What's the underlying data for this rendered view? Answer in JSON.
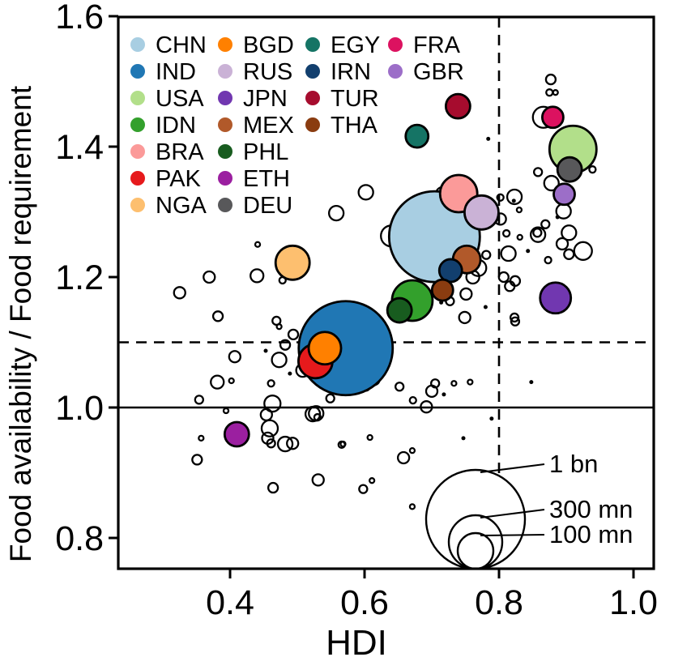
{
  "chart_data": {
    "type": "scatter",
    "title": "",
    "xlabel": "HDI",
    "ylabel": "Food availability / Food requirement",
    "xlim": [
      0.23373,
      1.03012
    ],
    "ylim": [
      0.7528,
      1.59876
    ],
    "xticks": [
      {
        "value": 0.4,
        "label": "0.4"
      },
      {
        "value": 0.6,
        "label": "0.6"
      },
      {
        "value": 0.8,
        "label": "0.8"
      },
      {
        "value": 1.0,
        "label": "1.0"
      }
    ],
    "yticks": [
      {
        "value": 0.8,
        "label": "0.8"
      },
      {
        "value": 1.0,
        "label": "1.0"
      },
      {
        "value": 1.2,
        "label": "1.2"
      },
      {
        "value": 1.4,
        "label": "1.4"
      },
      {
        "value": 1.6,
        "label": "1.6"
      }
    ],
    "reference_lines": {
      "solid_horizontal_y": 1.0,
      "dashed_horizontal_y": 1.1,
      "dashed_vertical_x": 0.8
    },
    "grid": false,
    "legend_position": "top-left",
    "countries": [
      {
        "code": "CHN",
        "color": "#a8cee2",
        "hdi": 0.704,
        "ratio": 1.262,
        "r": 56
      },
      {
        "code": "IND",
        "color": "#2077b4",
        "hdi": 0.572,
        "ratio": 1.091,
        "r": 58
      },
      {
        "code": "USA",
        "color": "#b2df8a",
        "hdi": 0.91,
        "ratio": 1.396,
        "r": 29
      },
      {
        "code": "IDN",
        "color": "#33a02c",
        "hdi": 0.671,
        "ratio": 1.164,
        "r": 25
      },
      {
        "code": "BRA",
        "color": "#fb9a99",
        "hdi": 0.74,
        "ratio": 1.328,
        "r": 23
      },
      {
        "code": "PAK",
        "color": "#e61a1c",
        "hdi": 0.527,
        "ratio": 1.071,
        "r": 21
      },
      {
        "code": "NGA",
        "color": "#fdbf6f",
        "hdi": 0.493,
        "ratio": 1.222,
        "r": 21
      },
      {
        "code": "BGD",
        "color": "#ff8000",
        "hdi": 0.541,
        "ratio": 1.091,
        "r": 20
      },
      {
        "code": "RUS",
        "color": "#cab2d6",
        "hdi": 0.774,
        "ratio": 1.299,
        "r": 21
      },
      {
        "code": "JPN",
        "color": "#7137b0",
        "hdi": 0.884,
        "ratio": 1.168,
        "r": 19
      },
      {
        "code": "MEX",
        "color": "#b1592a",
        "hdi": 0.752,
        "ratio": 1.227,
        "r": 17
      },
      {
        "code": "PHL",
        "color": "#185c1f",
        "hdi": 0.652,
        "ratio": 1.149,
        "r": 15
      },
      {
        "code": "ETH",
        "color": "#9b1fa0",
        "hdi": 0.41,
        "ratio": 0.959,
        "r": 15
      },
      {
        "code": "DEU",
        "color": "#58585a",
        "hdi": 0.905,
        "ratio": 1.365,
        "r": 15
      },
      {
        "code": "EGY",
        "color": "#157465",
        "hdi": 0.678,
        "ratio": 1.416,
        "r": 14
      },
      {
        "code": "IRN",
        "color": "#123f6e",
        "hdi": 0.728,
        "ratio": 1.21,
        "r": 14
      },
      {
        "code": "TUR",
        "color": "#a60c2e",
        "hdi": 0.739,
        "ratio": 1.462,
        "r": 15
      },
      {
        "code": "THA",
        "color": "#8a3c10",
        "hdi": 0.716,
        "ratio": 1.18,
        "r": 13
      },
      {
        "code": "FRA",
        "color": "#dc1260",
        "hdi": 0.88,
        "ratio": 1.445,
        "r": 13
      },
      {
        "code": "GBR",
        "color": "#9c6ec8",
        "hdi": 0.897,
        "ratio": 1.327,
        "r": 13
      }
    ],
    "legend_columns": [
      [
        "CHN",
        "IND",
        "USA",
        "IDN",
        "BRA",
        "PAK",
        "NGA"
      ],
      [
        "BGD",
        "RUS",
        "JPN",
        "MEX",
        "PHL",
        "ETH",
        "DEU"
      ],
      [
        "EGY",
        "IRN",
        "TUR",
        "THA"
      ],
      [
        "FRA",
        "GBR"
      ]
    ],
    "size_legend": [
      {
        "label": "1 bn",
        "r": 61
      },
      {
        "label": "300 mn",
        "r": 33
      },
      {
        "label": "100 mn",
        "r": 22
      }
    ],
    "other_countries": [
      [
        0.866,
        1.445,
        13
      ],
      [
        0.877,
        1.503,
        6
      ],
      [
        0.875,
        1.483,
        4
      ],
      [
        0.884,
        1.483,
        3
      ],
      [
        0.899,
        1.404,
        5
      ],
      [
        0.913,
        1.381,
        7
      ],
      [
        0.939,
        1.365,
        4
      ],
      [
        0.858,
        1.361,
        5
      ],
      [
        0.878,
        1.344,
        9
      ],
      [
        0.896,
        1.301,
        9
      ],
      [
        0.904,
        1.268,
        9
      ],
      [
        0.894,
        1.251,
        7
      ],
      [
        0.925,
        1.24,
        11
      ],
      [
        0.904,
        1.235,
        6
      ],
      [
        0.873,
        1.226,
        4
      ],
      [
        0.858,
        1.265,
        9
      ],
      [
        0.869,
        1.281,
        5
      ],
      [
        0.857,
        1.268,
        5
      ],
      [
        0.814,
        1.236,
        9
      ],
      [
        0.802,
        1.289,
        7
      ],
      [
        0.823,
        1.323,
        9
      ],
      [
        0.802,
        1.322,
        4
      ],
      [
        0.83,
        1.303,
        3
      ],
      [
        0.811,
        1.267,
        4
      ],
      [
        0.831,
        1.261,
        3
      ],
      [
        0.602,
        1.33,
        9
      ],
      [
        0.558,
        1.298,
        9
      ],
      [
        0.753,
        1.342,
        3
      ],
      [
        0.716,
        1.328,
        8
      ],
      [
        0.708,
        1.287,
        11
      ],
      [
        0.64,
        1.263,
        13
      ],
      [
        0.664,
        1.267,
        7
      ],
      [
        0.746,
        1.292,
        5
      ],
      [
        0.752,
        1.289,
        4
      ],
      [
        0.778,
        1.311,
        9
      ],
      [
        0.79,
        1.292,
        7
      ],
      [
        0.759,
        1.231,
        8
      ],
      [
        0.769,
        1.214,
        10
      ],
      [
        0.781,
        1.234,
        5
      ],
      [
        0.72,
        1.227,
        7
      ],
      [
        0.761,
        1.2,
        8
      ],
      [
        0.751,
        1.174,
        7
      ],
      [
        0.727,
        1.163,
        5
      ],
      [
        0.749,
        1.138,
        7
      ],
      [
        0.676,
        1.181,
        4
      ],
      [
        0.663,
        1.14,
        3
      ],
      [
        0.807,
        1.2,
        6
      ],
      [
        0.824,
        1.194,
        6
      ],
      [
        0.816,
        1.186,
        6
      ],
      [
        0.823,
        1.138,
        5
      ],
      [
        0.824,
        1.132,
        5
      ],
      [
        0.53,
        1.125,
        11
      ],
      [
        0.572,
        1.05,
        8
      ],
      [
        0.612,
        1.068,
        5
      ],
      [
        0.614,
        1.043,
        7
      ],
      [
        0.602,
        1.032,
        5
      ],
      [
        0.469,
        1.133,
        5
      ],
      [
        0.473,
        1.124,
        3
      ],
      [
        0.494,
        1.112,
        6
      ],
      [
        0.482,
        1.096,
        6
      ],
      [
        0.508,
        1.057,
        8
      ],
      [
        0.549,
        1.014,
        5
      ],
      [
        0.528,
        0.991,
        9
      ],
      [
        0.53,
        0.985,
        4
      ],
      [
        0.441,
        1.25,
        3
      ],
      [
        0.478,
        1.195,
        4
      ],
      [
        0.44,
        1.202,
        8
      ],
      [
        0.369,
        1.2,
        7
      ],
      [
        0.325,
        1.176,
        7
      ],
      [
        0.382,
        1.14,
        6
      ],
      [
        0.407,
        1.078,
        7
      ],
      [
        0.473,
        1.073,
        9
      ],
      [
        0.381,
        1.039,
        8
      ],
      [
        0.402,
        1.041,
        3
      ],
      [
        0.461,
        1.037,
        4
      ],
      [
        0.354,
        1.012,
        5
      ],
      [
        0.394,
        0.995,
        3
      ],
      [
        0.463,
        1.006,
        10
      ],
      [
        0.454,
        0.989,
        7
      ],
      [
        0.523,
        0.99,
        9
      ],
      [
        0.351,
        0.92,
        6
      ],
      [
        0.357,
        0.953,
        3
      ],
      [
        0.464,
        0.877,
        6
      ],
      [
        0.531,
        0.889,
        7
      ],
      [
        0.568,
        0.944,
        3
      ],
      [
        0.459,
        0.968,
        10
      ],
      [
        0.456,
        0.953,
        7
      ],
      [
        0.461,
        0.945,
        5
      ],
      [
        0.482,
        0.944,
        9
      ],
      [
        0.493,
        0.945,
        7
      ],
      [
        0.652,
        1.032,
        5
      ],
      [
        0.672,
        1.011,
        4
      ],
      [
        0.692,
        1.001,
        7
      ],
      [
        0.7,
        1.025,
        7
      ],
      [
        0.705,
        1.037,
        5
      ],
      [
        0.733,
        1.037,
        3
      ],
      [
        0.757,
        1.039,
        3
      ],
      [
        0.608,
        0.954,
        3
      ],
      [
        0.566,
        0.943,
        4
      ],
      [
        0.658,
        0.923,
        7
      ],
      [
        0.671,
        0.934,
        3
      ],
      [
        0.611,
        0.888,
        3
      ],
      [
        0.598,
        0.875,
        5
      ],
      [
        0.671,
        0.848,
        3
      ]
    ],
    "small_dots": [
      [
        0.882,
        1.406
      ],
      [
        0.887,
        1.292
      ],
      [
        0.843,
        1.24
      ],
      [
        0.822,
        1.317
      ],
      [
        0.784,
        1.412
      ],
      [
        0.848,
        1.039
      ],
      [
        0.789,
        0.983
      ],
      [
        0.747,
        0.953
      ],
      [
        0.718,
        1.02
      ],
      [
        0.453,
        1.087
      ],
      [
        0.489,
        1.052
      ],
      [
        0.636,
        1.109
      ],
      [
        0.694,
        1.159
      ],
      [
        0.714,
        1.161
      ],
      [
        0.78,
        1.154
      ],
      [
        0.627,
        1.124
      ]
    ]
  },
  "colors": {
    "stroke": "#000000",
    "background": "#ffffff",
    "open_circle_stroke": "#000000"
  }
}
